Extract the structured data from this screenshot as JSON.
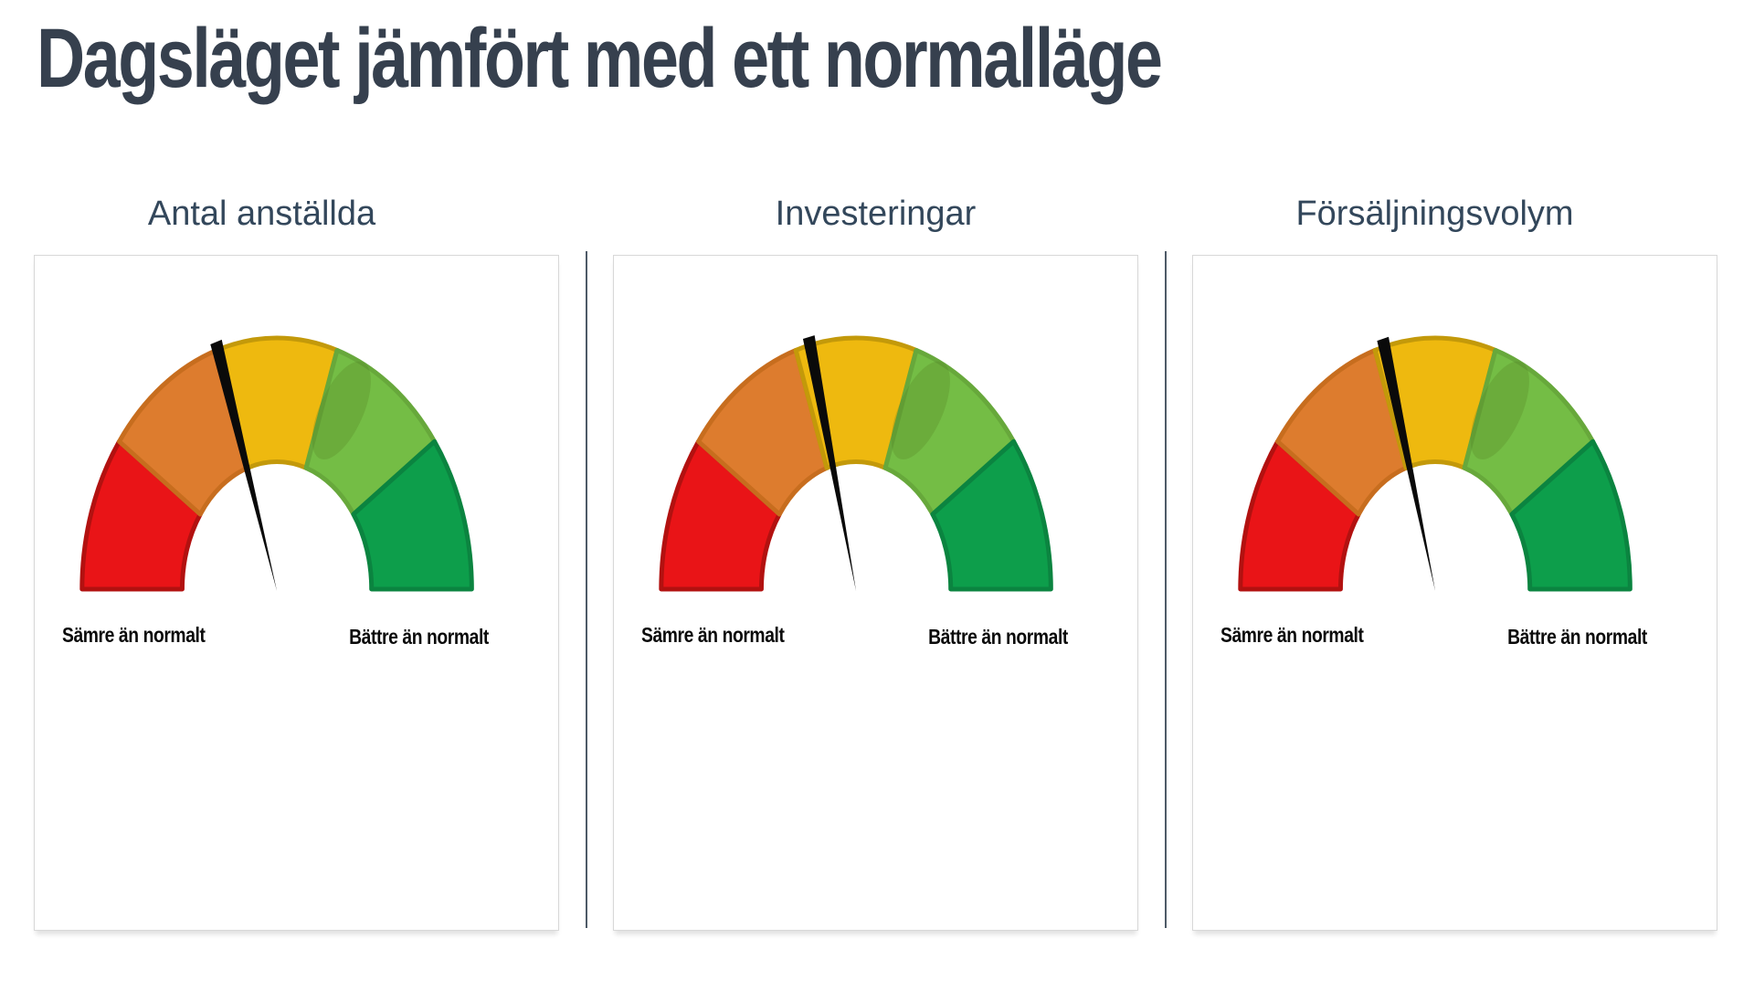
{
  "page": {
    "title": "Dagsläget jämfört med ett normalläge"
  },
  "chart_data": {
    "type": "gauge",
    "title": "Dagsläget jämfört med ett normalläge",
    "scale_labels": {
      "left": "Sämre än normalt",
      "right": "Bättre än normalt"
    },
    "scale": {
      "span_deg": 180,
      "min": "Sämre än normalt",
      "max": "Bättre än normalt",
      "segment_count": 5,
      "segments_equal": true
    },
    "segments": [
      {
        "name": "far-below-normal",
        "color": "#e91417",
        "border_color": "#b21110"
      },
      {
        "name": "below-normal",
        "color": "#dd7c2e",
        "border_color": "#c76d1e"
      },
      {
        "name": "normal",
        "color": "#eeb90f",
        "border_color": "#c3990a"
      },
      {
        "name": "above-normal",
        "color": "#74bd45",
        "border_color": "#67a83b"
      },
      {
        "name": "far-above-normal",
        "color": "#0d9e4b",
        "border_color": "#0b8440"
      }
    ],
    "needle_color": "#0a0a0a",
    "gauges": [
      {
        "title": "Antal anställda",
        "needle_angle_deg": 107.6,
        "value_fraction": 0.4
      },
      {
        "title": "Investeringar",
        "needle_angle_deg": 103.6,
        "value_fraction": 0.42
      },
      {
        "title": "Försäljningsvolym",
        "needle_angle_deg": 105.1,
        "value_fraction": 0.41
      }
    ]
  },
  "colors": {
    "title_text": "#36404e",
    "gauge_title_text": "#33475b",
    "label_text": "#0b0b0b",
    "divider": "#4e5a67",
    "panel_border": "#d8d8d8",
    "background": "#ffffff"
  }
}
